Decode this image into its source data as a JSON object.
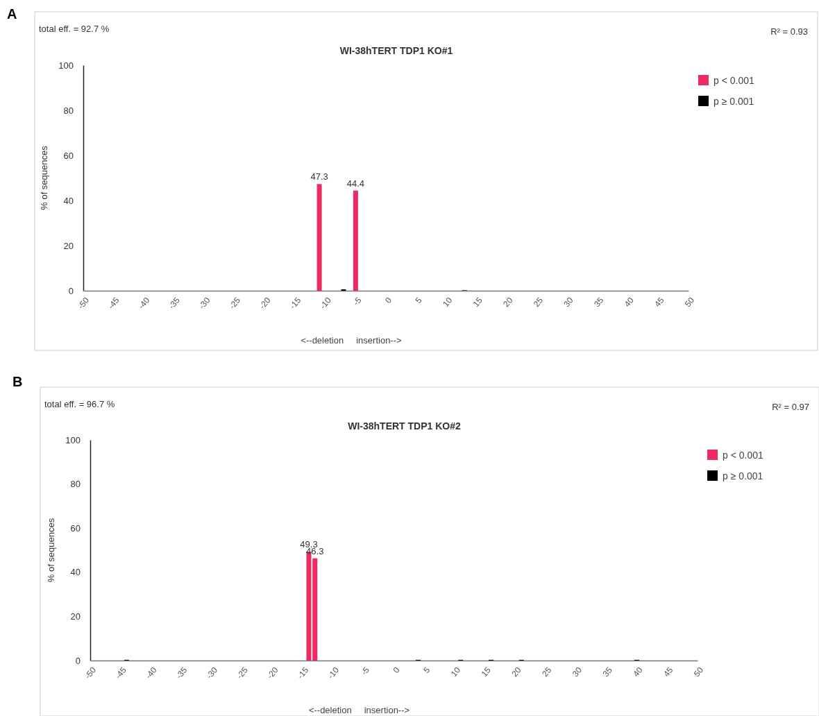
{
  "chart_data": [
    {
      "type": "bar",
      "title": "WI-38hTERT TDP1 KO#1",
      "xlabel": "<--deletion     insertion-->",
      "ylabel": "% of sequences",
      "annotations": [
        "A",
        "total eff. = 92.7 %",
        "R² = 0.93"
      ],
      "series": [
        {
          "name": "p < 0.001",
          "color": "#ee2a62",
          "x": [
            -11,
            -5
          ],
          "values": [
            47.3,
            44.4
          ],
          "value_labels": [
            "47.3",
            "44.4"
          ]
        },
        {
          "name": "p ≥ 0.001",
          "color": "#000000",
          "x": [
            -7,
            13
          ],
          "values": [
            0.6,
            0.2
          ]
        }
      ],
      "xlim": [
        -50,
        50
      ],
      "xticks": [
        -50,
        -45,
        -40,
        -35,
        -30,
        -25,
        -20,
        -15,
        -10,
        -5,
        0,
        5,
        10,
        15,
        20,
        25,
        30,
        35,
        40,
        45,
        50
      ],
      "ylim": [
        0,
        100
      ],
      "yticks": [
        0,
        20,
        40,
        60,
        80,
        100
      ],
      "legend": "top right",
      "grid": false
    },
    {
      "type": "bar",
      "title": "WI-38hTERT TDP1 KO#2",
      "xlabel": "<--deletion     insertion-->",
      "ylabel": "% of sequences",
      "annotations": [
        "B",
        "total eff. = 96.7 %",
        "R² = 0.97"
      ],
      "series": [
        {
          "name": "p < 0.001",
          "color": "#ee2a62",
          "x": [
            -14,
            -13
          ],
          "values": [
            49.3,
            46.3
          ],
          "value_labels": [
            "49.3",
            "46.3"
          ]
        },
        {
          "name": "p ≥ 0.001",
          "color": "#000000",
          "x": [
            -44,
            4,
            11,
            16,
            21,
            40
          ],
          "values": [
            0.3,
            0.3,
            0.3,
            0.3,
            0.3,
            0.3
          ]
        }
      ],
      "xlim": [
        -50,
        50
      ],
      "xticks": [
        -50,
        -45,
        -40,
        -35,
        -30,
        -25,
        -20,
        -15,
        -10,
        -5,
        0,
        5,
        10,
        15,
        20,
        25,
        30,
        35,
        40,
        45,
        50
      ],
      "ylim": [
        0,
        100
      ],
      "yticks": [
        0,
        20,
        40,
        60,
        80,
        100
      ],
      "legend": "top right",
      "grid": false
    }
  ]
}
